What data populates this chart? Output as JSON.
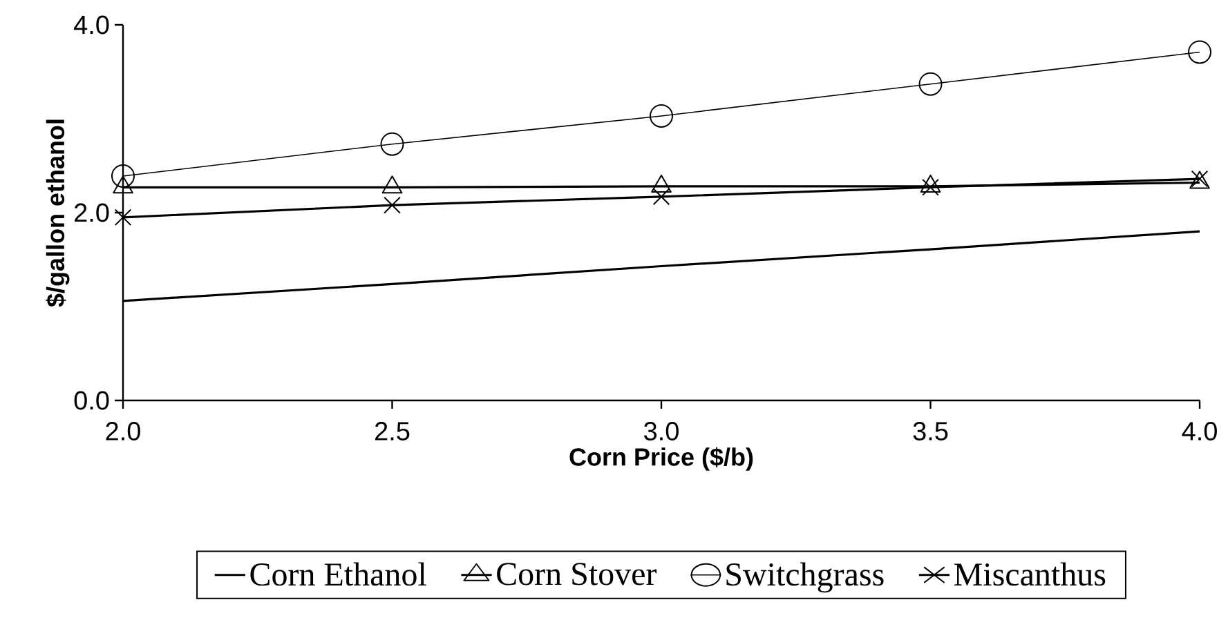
{
  "chart_data": {
    "type": "line",
    "xlabel": "Corn Price ($/b)",
    "ylabel": "$/gallon ethanol",
    "x": [
      2.0,
      2.5,
      3.0,
      3.5,
      4.0
    ],
    "series": [
      {
        "name": "Corn Ethanol",
        "color": "#000000",
        "marker": "none",
        "values": [
          1.06,
          1.24,
          1.43,
          1.61,
          1.8
        ]
      },
      {
        "name": "Corn Stover",
        "color": "#000000",
        "marker": "triangle",
        "values": [
          2.27,
          2.27,
          2.28,
          2.28,
          2.32
        ]
      },
      {
        "name": "Switchgrass",
        "color": "#000000",
        "marker": "circle",
        "values": [
          2.39,
          2.73,
          3.03,
          3.37,
          3.71
        ]
      },
      {
        "name": "Miscanthus",
        "color": "#000000",
        "marker": "cross",
        "values": [
          1.95,
          2.08,
          2.17,
          2.27,
          2.36
        ]
      }
    ],
    "xlim": [
      2.0,
      4.0
    ],
    "ylim": [
      0.0,
      4.0
    ],
    "xticks": [
      {
        "value": 2.0,
        "label": "2.0"
      },
      {
        "value": 2.5,
        "label": "2.5"
      },
      {
        "value": 3.0,
        "label": "3.0"
      },
      {
        "value": 3.5,
        "label": "3.5"
      },
      {
        "value": 4.0,
        "label": "4.0"
      }
    ],
    "yticks": [
      {
        "value": 0.0,
        "label": "0.0"
      },
      {
        "value": 2.0,
        "label": "2.0"
      },
      {
        "value": 4.0,
        "label": "4.0"
      }
    ],
    "legend": "bottom",
    "grid": false,
    "line_style": "solid"
  }
}
